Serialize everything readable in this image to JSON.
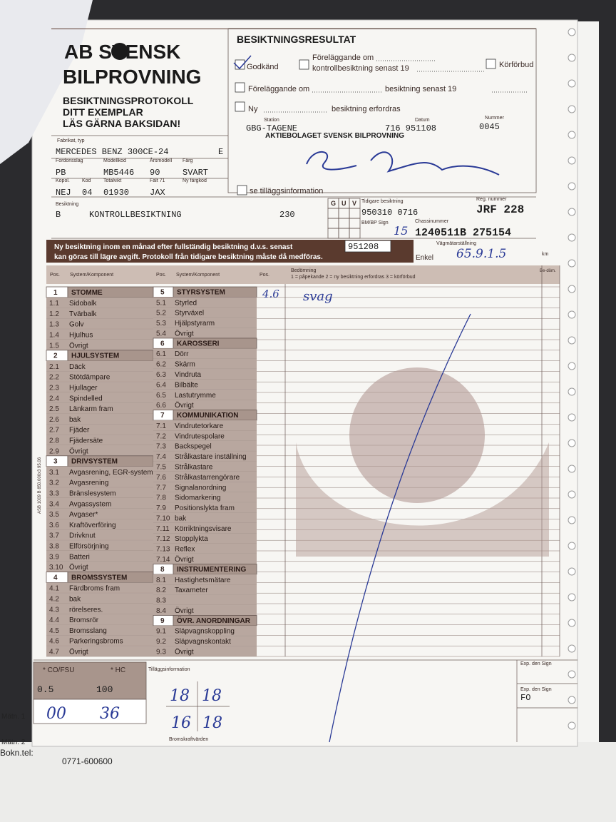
{
  "header": {
    "logo_top": "AB SVENSK",
    "logo_bottom": "BILPROVNING",
    "protocol": [
      "BESIKTNINGSPROTOKOLL",
      "DITT EXEMPLAR",
      "LÄS GÄRNA BAKSIDAN!"
    ]
  },
  "result": {
    "title": "BESIKTNINGSRESULTAT",
    "approved": "Godkänd",
    "order_control_1": "Föreläggande om",
    "order_control_2": "kontrollbesiktning senast 19",
    "ban": "Körförbud",
    "order": "Föreläggande om",
    "order_suffix": "besiktning senast 19",
    "new": "Ny",
    "new_suffix": "besiktning erfordras",
    "station_label": "Station",
    "station": "GBG-TAGENE",
    "date_label": "Datum",
    "date": "716 951108",
    "number_label": "Nummer",
    "number": "0045",
    "company": "AKTIEBOLAGET SVENSK BILPROVNING",
    "extra_info": "se tilläggsinformation"
  },
  "vehicle": {
    "make_label": "Fabrikat, typ",
    "make": "MERCEDES BENZ 300CE-24",
    "make_suffix": "E",
    "row1": [
      {
        "label": "Fordonsslag",
        "value": "PB"
      },
      {
        "label": "Modellkod",
        "value": "MB5446"
      },
      {
        "label": "Årsmodell",
        "value": "90"
      },
      {
        "label": "Färg",
        "value": "SVART"
      }
    ],
    "row2": [
      {
        "label": "Kopol.",
        "value": "NEJ"
      },
      {
        "label": "Kod",
        "value": "04"
      },
      {
        "label": "Totalvikt",
        "value": "01930"
      },
      {
        "label": "Fält 71",
        "value": "JAX"
      },
      {
        "label": "Ny färgkod"
      }
    ],
    "inspection_label": "Besiktning",
    "inspection_code": "B",
    "inspection_type": "KONTROLLBESIKTNING",
    "inspection_fee": "230",
    "guv": [
      "G",
      "U",
      "V"
    ],
    "previous_label": "Tidigare besiktning",
    "previous": "950310 0716",
    "sign_label": "BM/BP Sign",
    "sign": "15",
    "reg_label": "Reg. nummer",
    "reg": "JRF 228",
    "chassis_label": "Chassinummer",
    "chassis": "1240511B 275154"
  },
  "banner": {
    "line1": "Ny besiktning inom en månad efter fullständig besiktning d.v.s. senast",
    "line2": "kan göras till lägre avgift. Protokoll från tidigare besiktning måste då medföras.",
    "deadline": "951208",
    "simple": "Enkel",
    "odometer_label": "Vägmätarställning",
    "odometer": "65.9.1.5",
    "km": "km"
  },
  "table": {
    "pos": "Pos.",
    "system": "System/Komponent",
    "assessment": "Bedömning",
    "scale": "1 = påpekande   2 = ny besiktning erfordras   3 = körförbud",
    "assess_short": "Be-döm.",
    "left": [
      {
        "num": "1",
        "title": "STOMME",
        "items": [
          {
            "pos": "1.1",
            "name": "Sidobalk"
          },
          {
            "pos": "1.2",
            "name": "Tvärbalk"
          },
          {
            "pos": "1.3",
            "name": "Golv"
          },
          {
            "pos": "1.4",
            "name": "Hjulhus"
          },
          {
            "pos": "1.5",
            "name": "Övrigt"
          }
        ]
      },
      {
        "num": "2",
        "title": "HJULSYSTEM",
        "items": [
          {
            "pos": "2.1",
            "name": "Däck"
          },
          {
            "pos": "2.2",
            "name": "Stötdämpare"
          },
          {
            "pos": "2.3",
            "name": "Hjullager"
          },
          {
            "pos": "2.4",
            "name": "Spindelled"
          },
          {
            "pos": "2.5",
            "name": "Länkarm fram"
          },
          {
            "pos": "2.6",
            "name": "bak"
          },
          {
            "pos": "2.7",
            "name": "Fjäder"
          },
          {
            "pos": "2.8",
            "name": "Fjädersäte"
          },
          {
            "pos": "2.9",
            "name": "Övrigt"
          }
        ]
      },
      {
        "num": "3",
        "title": "DRIVSYSTEM",
        "items": [
          {
            "pos": "3.1",
            "name": "Avgasrening, EGR-system"
          },
          {
            "pos": "3.2",
            "name": "Avgasrening"
          },
          {
            "pos": "3.3",
            "name": "Bränslesystem"
          },
          {
            "pos": "3.4",
            "name": "Avgassystem"
          },
          {
            "pos": "3.5",
            "name": "Avgaser*"
          },
          {
            "pos": "3.6",
            "name": "Kraftöverföring"
          },
          {
            "pos": "3.7",
            "name": "Drivknut"
          },
          {
            "pos": "3.8",
            "name": "Elförsörjning"
          },
          {
            "pos": "3.9",
            "name": "Batteri"
          },
          {
            "pos": "3.10",
            "name": "Övrigt"
          }
        ]
      },
      {
        "num": "4",
        "title": "BROMSSYSTEM",
        "items": [
          {
            "pos": "4.1",
            "name": "Färdbroms fram"
          },
          {
            "pos": "4.2",
            "name": "bak"
          },
          {
            "pos": "4.3",
            "name": "rörelseres."
          },
          {
            "pos": "4.4",
            "name": "Bromsrör"
          },
          {
            "pos": "4.5",
            "name": "Bromsslang"
          },
          {
            "pos": "4.6",
            "name": "Parkeringsbroms"
          },
          {
            "pos": "4.7",
            "name": "Övrigt"
          }
        ]
      }
    ],
    "right": [
      {
        "num": "5",
        "title": "STYRSYSTEM",
        "items": [
          {
            "pos": "5.1",
            "name": "Styrled"
          },
          {
            "pos": "5.2",
            "name": "Styrväxel"
          },
          {
            "pos": "5.3",
            "name": "Hjälpstyrarm"
          },
          {
            "pos": "5.4",
            "name": "Övrigt"
          }
        ]
      },
      {
        "num": "6",
        "title": "KAROSSERI",
        "items": [
          {
            "pos": "6.1",
            "name": "Dörr"
          },
          {
            "pos": "6.2",
            "name": "Skärm"
          },
          {
            "pos": "6.3",
            "name": "Vindruta"
          },
          {
            "pos": "6.4",
            "name": "Bilbälte"
          },
          {
            "pos": "6.5",
            "name": "Lastutrymme"
          },
          {
            "pos": "6.6",
            "name": "Övrigt"
          }
        ]
      },
      {
        "num": "7",
        "title": "KOMMUNIKATION",
        "items": [
          {
            "pos": "7.1",
            "name": "Vindrutetorkare"
          },
          {
            "pos": "7.2",
            "name": "Vindrutespolare"
          },
          {
            "pos": "7.3",
            "name": "Backspegel"
          },
          {
            "pos": "7.4",
            "name": "Strålkastare inställning"
          },
          {
            "pos": "7.5",
            "name": "Strålkastare"
          },
          {
            "pos": "7.6",
            "name": "Strålkastarrengörare"
          },
          {
            "pos": "7.7",
            "name": "Signalanordning"
          },
          {
            "pos": "7.8",
            "name": "Sidomarkering"
          },
          {
            "pos": "7.9",
            "name": "Positionslykta fram"
          },
          {
            "pos": "7.10",
            "name": "bak"
          },
          {
            "pos": "7.11",
            "name": "Körriktningsvisare"
          },
          {
            "pos": "7.12",
            "name": "Stopplykta"
          },
          {
            "pos": "7.13",
            "name": "Reflex"
          },
          {
            "pos": "7.14",
            "name": "Övrigt"
          }
        ]
      },
      {
        "num": "8",
        "title": "INSTRUMENTERING",
        "items": [
          {
            "pos": "8.1",
            "name": "Hastighetsmätare"
          },
          {
            "pos": "8.2",
            "name": "Taxameter"
          },
          {
            "pos": "8.3"
          },
          {
            "pos": "8.4",
            "name": "Övrigt"
          }
        ]
      },
      {
        "num": "9",
        "title": "ÖVR. ANORDNINGAR",
        "items": [
          {
            "pos": "9.1",
            "name": "Släpvagnskoppling"
          },
          {
            "pos": "9.2",
            "name": "Släpvagnskontakt"
          },
          {
            "pos": "9.3",
            "name": "Övrigt"
          }
        ]
      }
    ],
    "remark_pos": "4.6",
    "remark": "svag"
  },
  "bottom": {
    "co_label": "* CO/FSU",
    "hc_label": "* HC",
    "co": "0.5",
    "hc": "100",
    "co_measured": "00",
    "hc_measured": "36",
    "measure1": "Mätn. 1",
    "measure2": "Mätn. 2",
    "extra_label": "Tilläggsinformation",
    "brakes": [
      "18",
      "18",
      "16",
      "18"
    ],
    "brakes_label": "Bromskraftvärden",
    "exp1": "Exp. den Sign",
    "exp2": "Exp. den Sign",
    "exp_sign": "FO",
    "print_code": "ASB 1009 B 850.000x3 95.06"
  },
  "outside": {
    "booking_label": "Bokn.tel:",
    "booking": "0771-600600"
  }
}
